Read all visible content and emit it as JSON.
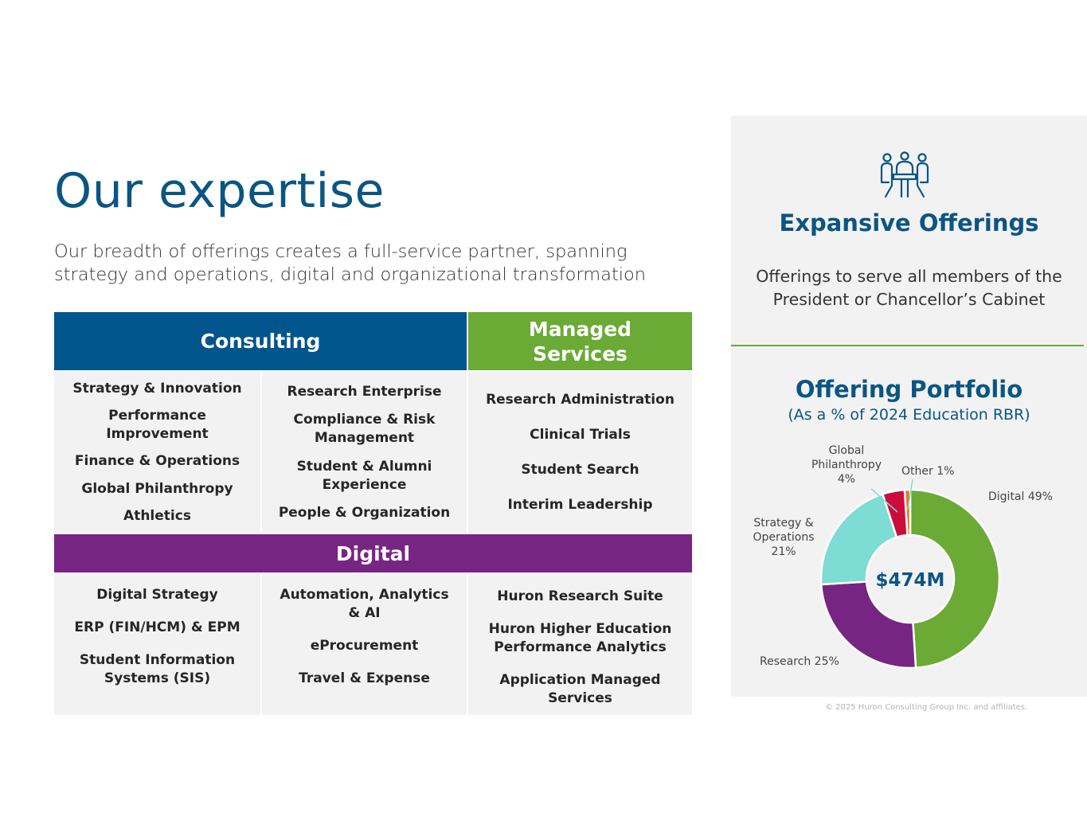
{
  "heading": {
    "title": "Our expertise",
    "subtitle": "Our breadth of offerings creates a full-service partner, spanning strategy and operations, digital and organizational transformation"
  },
  "grid": {
    "consulting_header": "Consulting",
    "managed_header": "Managed Services",
    "digital_header": "Digital",
    "consulting_col1": [
      "Strategy & Innovation",
      "Performance Improvement",
      "Finance & Operations",
      "Global Philanthropy",
      "Athletics"
    ],
    "consulting_col2": [
      "Research Enterprise",
      "Compliance & Risk Management",
      "Student & Alumni Experience",
      "People & Organization"
    ],
    "managed_col": [
      "Research Administration",
      "Clinical Trials",
      "Student Search",
      "Interim Leadership"
    ],
    "digital_col1": [
      "Digital Strategy",
      "ERP (FIN/HCM) & EPM",
      "Student Information Systems (SIS)"
    ],
    "digital_col2": [
      "Automation, Analytics & AI",
      "eProcurement",
      "Travel & Expense"
    ],
    "digital_col3": [
      "Huron Research Suite",
      "Huron Higher Education Performance Analytics",
      "Application Managed Services"
    ]
  },
  "panel": {
    "icon": "people-meeting-icon",
    "title": "Expansive Offerings",
    "text": "Offerings to serve all members of the President or Chancellor’s Cabinet",
    "portfolio_title": "Offering Portfolio",
    "portfolio_subtitle": "(As a % of 2024 Education RBR)"
  },
  "chart_data": {
    "type": "pie",
    "center_label": "$474M",
    "slices": [
      {
        "name": "Digital",
        "value": 49,
        "label": [
          "Digital 49%"
        ],
        "color": "#6aaa35"
      },
      {
        "name": "Research",
        "value": 25,
        "label": [
          "Research 25%"
        ],
        "color": "#772583"
      },
      {
        "name": "Strategy & Operations",
        "value": 21,
        "label": [
          "Strategy &",
          "Operations",
          "21%"
        ],
        "color": "#7ddcd3"
      },
      {
        "name": "Global Philanthropy",
        "value": 4,
        "label": [
          "Global",
          "Philanthropy",
          "4%"
        ],
        "color": "#cc0c3c"
      },
      {
        "name": "Other",
        "value": 1,
        "label": [
          "Other 1%"
        ],
        "color": "#e87722"
      }
    ]
  },
  "footer": {
    "copyright": "© 2025 Huron Consulting Group Inc. and affiliates."
  }
}
